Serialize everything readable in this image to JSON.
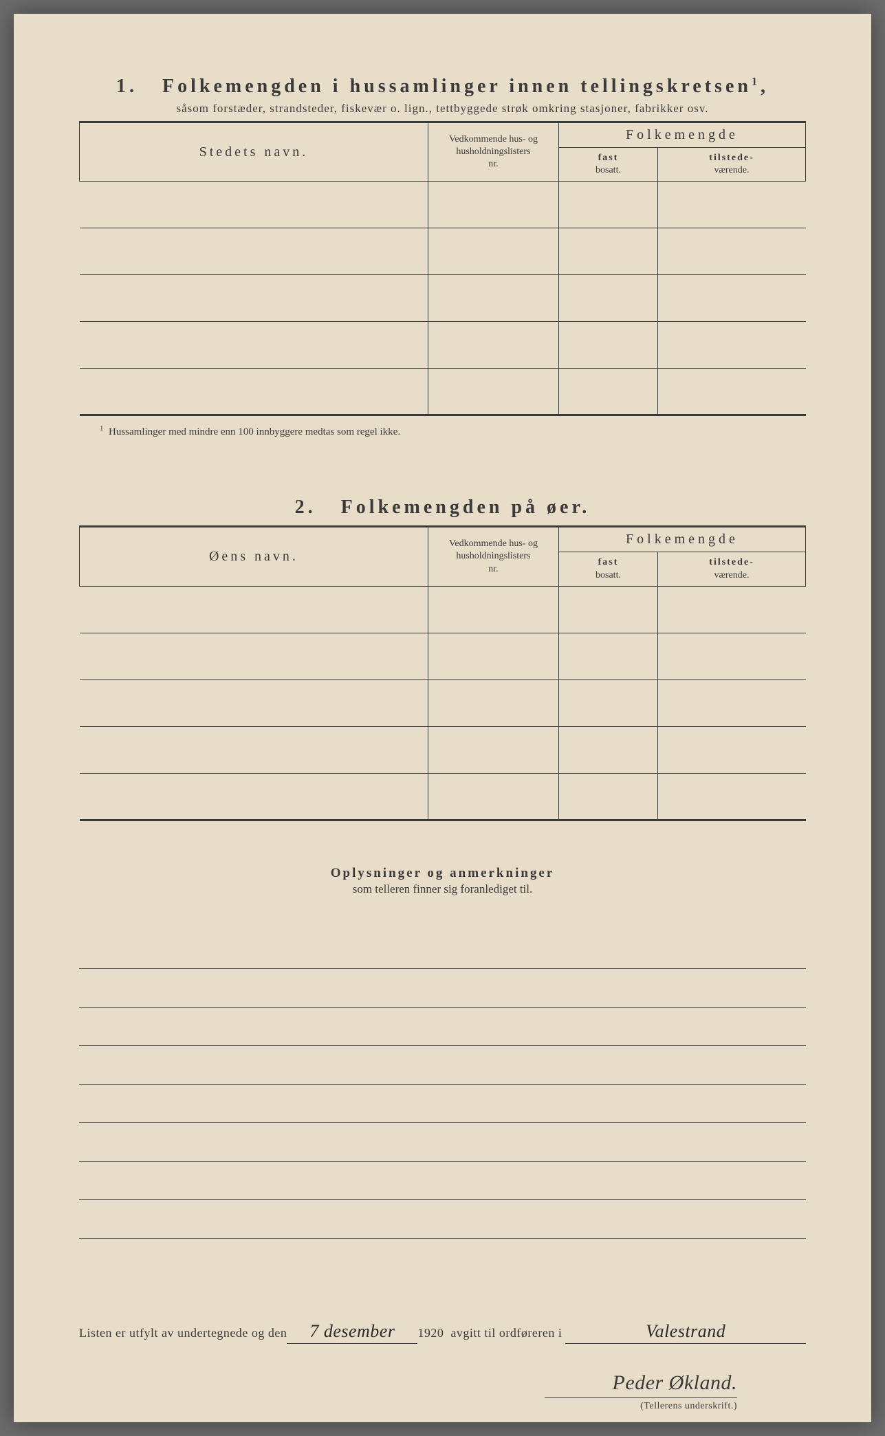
{
  "section1": {
    "number": "1.",
    "title": "Folkemengden i hussamlinger innen tellingskretsen",
    "title_sup": "1",
    "subtitle": "såsom forstæder, strandsteder, fiskevær o. lign., tettbyggede strøk omkring stasjoner, fabrikker osv.",
    "col_name": "Stedets navn.",
    "col_list_l1": "Vedkommende hus- og",
    "col_list_l2": "husholdningslisters",
    "col_list_l3": "nr.",
    "col_folk": "Folkemengde",
    "col_fast_b": "fast",
    "col_fast_s": "bosatt.",
    "col_til_b": "tilstede-",
    "col_til_s": "værende.",
    "footnote_sup": "1",
    "footnote": "Hussamlinger med mindre enn 100 innbyggere medtas som regel ikke."
  },
  "section2": {
    "number": "2.",
    "title": "Folkemengden på øer.",
    "col_name": "Øens navn.",
    "col_list_l1": "Vedkommende hus- og",
    "col_list_l2": "husholdningslisters",
    "col_list_l3": "nr.",
    "col_folk": "Folkemengde",
    "col_fast_b": "fast",
    "col_fast_s": "bosatt.",
    "col_til_b": "tilstede-",
    "col_til_s": "værende."
  },
  "remarks": {
    "title": "Oplysninger og anmerkninger",
    "subtitle": "som telleren finner sig foranlediget til.",
    "line_count": 8
  },
  "signature": {
    "text1": "Listen er utfylt av undertegnede og den",
    "date": "7 desember",
    "year": "1920",
    "text2": "avgitt til ordføreren i",
    "place": "Valestrand",
    "name": "Peder Økland.",
    "label": "(Tellerens underskrift.)"
  },
  "colors": {
    "paper": "#e8ddc8",
    "ink": "#3a3a3a",
    "background": "#6b6b6b"
  }
}
